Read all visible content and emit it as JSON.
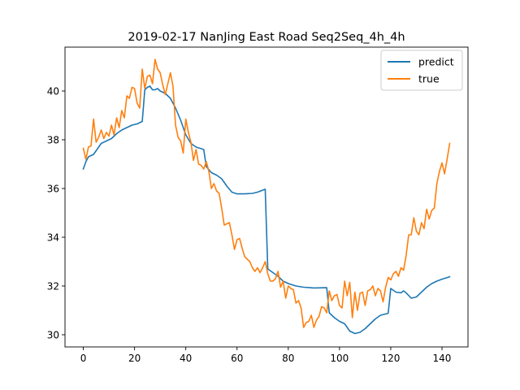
{
  "chart_data": {
    "type": "line",
    "title": "2019-02-17 NanJing East Road Seq2Seq_4h_4h",
    "xlabel": "",
    "ylabel": "",
    "xlim": [
      -7.15,
      150.15
    ],
    "ylim": [
      29.5,
      41.8
    ],
    "xticks": [
      0,
      20,
      40,
      60,
      80,
      100,
      120,
      140
    ],
    "yticks": [
      30,
      32,
      34,
      36,
      38,
      40
    ],
    "grid": false,
    "legend_position": "top-right",
    "series": [
      {
        "name": "predict",
        "color": "#1f77b4",
        "points": [
          [
            0,
            36.8
          ],
          [
            1,
            37.1
          ],
          [
            2,
            37.3
          ],
          [
            4,
            37.4
          ],
          [
            5,
            37.55
          ],
          [
            6,
            37.7
          ],
          [
            7,
            37.85
          ],
          [
            9,
            37.95
          ],
          [
            11,
            38.05
          ],
          [
            13,
            38.25
          ],
          [
            15,
            38.4
          ],
          [
            17,
            38.5
          ],
          [
            19,
            38.6
          ],
          [
            21,
            38.65
          ],
          [
            23,
            38.75
          ],
          [
            24,
            40.05
          ],
          [
            25,
            40.15
          ],
          [
            26,
            40.2
          ],
          [
            27,
            40.05
          ],
          [
            28,
            40.05
          ],
          [
            29,
            40.1
          ],
          [
            30,
            40.0
          ],
          [
            32,
            39.9
          ],
          [
            34,
            39.7
          ],
          [
            36,
            39.3
          ],
          [
            38,
            38.8
          ],
          [
            40,
            38.2
          ],
          [
            42,
            37.85
          ],
          [
            44,
            37.7
          ],
          [
            47,
            37.6
          ],
          [
            48,
            36.9
          ],
          [
            50,
            36.65
          ],
          [
            52,
            36.55
          ],
          [
            54,
            36.4
          ],
          [
            56,
            36.1
          ],
          [
            58,
            35.85
          ],
          [
            60,
            35.78
          ],
          [
            63,
            35.78
          ],
          [
            66,
            35.8
          ],
          [
            68,
            35.85
          ],
          [
            71,
            35.97
          ],
          [
            72,
            32.7
          ],
          [
            74,
            32.55
          ],
          [
            76,
            32.4
          ],
          [
            78,
            32.2
          ],
          [
            80,
            32.1
          ],
          [
            83,
            32.0
          ],
          [
            86,
            31.95
          ],
          [
            90,
            31.92
          ],
          [
            95,
            31.93
          ],
          [
            96,
            30.9
          ],
          [
            98,
            30.7
          ],
          [
            100,
            30.55
          ],
          [
            102,
            30.45
          ],
          [
            104,
            30.15
          ],
          [
            106,
            30.05
          ],
          [
            108,
            30.1
          ],
          [
            110,
            30.25
          ],
          [
            112,
            30.45
          ],
          [
            114,
            30.65
          ],
          [
            116,
            30.8
          ],
          [
            119,
            30.88
          ],
          [
            120,
            31.9
          ],
          [
            122,
            31.75
          ],
          [
            124,
            31.72
          ],
          [
            125,
            31.8
          ],
          [
            126,
            31.72
          ],
          [
            128,
            31.5
          ],
          [
            130,
            31.55
          ],
          [
            132,
            31.75
          ],
          [
            134,
            31.95
          ],
          [
            136,
            32.1
          ],
          [
            138,
            32.2
          ],
          [
            140,
            32.28
          ],
          [
            143,
            32.38
          ]
        ]
      },
      {
        "name": "true",
        "color": "#ff7f0e",
        "points": [
          [
            0,
            37.65
          ],
          [
            1,
            37.2
          ],
          [
            2,
            37.7
          ],
          [
            3,
            37.75
          ],
          [
            4,
            38.85
          ],
          [
            5,
            37.9
          ],
          [
            6,
            38.1
          ],
          [
            7,
            38.4
          ],
          [
            8,
            38.05
          ],
          [
            9,
            38.3
          ],
          [
            10,
            38.15
          ],
          [
            11,
            38.6
          ],
          [
            12,
            38.2
          ],
          [
            13,
            38.9
          ],
          [
            14,
            38.5
          ],
          [
            15,
            39.2
          ],
          [
            16,
            38.9
          ],
          [
            17,
            39.8
          ],
          [
            18,
            39.7
          ],
          [
            19,
            40.15
          ],
          [
            20,
            40.1
          ],
          [
            21,
            39.5
          ],
          [
            22,
            39.3
          ],
          [
            23,
            40.9
          ],
          [
            24,
            40.1
          ],
          [
            25,
            40.6
          ],
          [
            26,
            40.65
          ],
          [
            27,
            40.3
          ],
          [
            28,
            41.3
          ],
          [
            29,
            40.9
          ],
          [
            30,
            40.75
          ],
          [
            31,
            40.25
          ],
          [
            32,
            39.85
          ],
          [
            33,
            40.3
          ],
          [
            34,
            40.75
          ],
          [
            35,
            40.2
          ],
          [
            36,
            38.6
          ],
          [
            37,
            38.1
          ],
          [
            38,
            37.95
          ],
          [
            39,
            37.45
          ],
          [
            40,
            38.85
          ],
          [
            41,
            38.3
          ],
          [
            42,
            37.9
          ],
          [
            43,
            37.15
          ],
          [
            44,
            37.6
          ],
          [
            45,
            37.0
          ],
          [
            46,
            36.95
          ],
          [
            47,
            36.8
          ],
          [
            48,
            37.1
          ],
          [
            49,
            36.7
          ],
          [
            50,
            36.0
          ],
          [
            51,
            36.2
          ],
          [
            52,
            35.9
          ],
          [
            53,
            35.8
          ],
          [
            54,
            35.2
          ],
          [
            55,
            34.5
          ],
          [
            56,
            34.55
          ],
          [
            57,
            34.6
          ],
          [
            58,
            34.1
          ],
          [
            59,
            33.5
          ],
          [
            60,
            33.9
          ],
          [
            61,
            33.95
          ],
          [
            62,
            33.55
          ],
          [
            63,
            33.2
          ],
          [
            64,
            33.1
          ],
          [
            65,
            33.0
          ],
          [
            66,
            32.75
          ],
          [
            67,
            32.6
          ],
          [
            68,
            32.75
          ],
          [
            69,
            32.55
          ],
          [
            70,
            32.75
          ],
          [
            71,
            33.0
          ],
          [
            72,
            32.5
          ],
          [
            73,
            32.2
          ],
          [
            74,
            32.2
          ],
          [
            75,
            32.3
          ],
          [
            76,
            32.6
          ],
          [
            77,
            31.95
          ],
          [
            78,
            32.2
          ],
          [
            79,
            31.5
          ],
          [
            80,
            32.0
          ],
          [
            81,
            31.9
          ],
          [
            82,
            31.85
          ],
          [
            83,
            31.3
          ],
          [
            84,
            31.4
          ],
          [
            85,
            31.1
          ],
          [
            86,
            30.3
          ],
          [
            87,
            30.5
          ],
          [
            88,
            30.55
          ],
          [
            89,
            30.8
          ],
          [
            90,
            30.3
          ],
          [
            91,
            30.6
          ],
          [
            92,
            30.75
          ],
          [
            93,
            31.15
          ],
          [
            94,
            31.1
          ],
          [
            95,
            30.9
          ],
          [
            96,
            31.8
          ],
          [
            97,
            31.4
          ],
          [
            98,
            31.6
          ],
          [
            99,
            31.65
          ],
          [
            100,
            31.2
          ],
          [
            101,
            31.1
          ],
          [
            102,
            32.2
          ],
          [
            103,
            31.6
          ],
          [
            104,
            32.15
          ],
          [
            105,
            30.7
          ],
          [
            106,
            31.75
          ],
          [
            107,
            31.0
          ],
          [
            108,
            31.7
          ],
          [
            109,
            31.75
          ],
          [
            110,
            31.2
          ],
          [
            111,
            31.8
          ],
          [
            112,
            31.85
          ],
          [
            113,
            32.0
          ],
          [
            114,
            31.6
          ],
          [
            115,
            31.9
          ],
          [
            116,
            31.8
          ],
          [
            117,
            31.35
          ],
          [
            118,
            31.95
          ],
          [
            119,
            32.35
          ],
          [
            120,
            32.25
          ],
          [
            121,
            32.5
          ],
          [
            122,
            32.6
          ],
          [
            123,
            32.4
          ],
          [
            124,
            32.75
          ],
          [
            125,
            32.65
          ],
          [
            126,
            33.25
          ],
          [
            127,
            34.1
          ],
          [
            128,
            34.1
          ],
          [
            129,
            34.8
          ],
          [
            130,
            34.25
          ],
          [
            131,
            34.1
          ],
          [
            132,
            34.6
          ],
          [
            133,
            34.35
          ],
          [
            134,
            35.15
          ],
          [
            135,
            34.75
          ],
          [
            136,
            35.1
          ],
          [
            137,
            35.2
          ],
          [
            138,
            36.2
          ],
          [
            139,
            36.7
          ],
          [
            140,
            37.05
          ],
          [
            141,
            36.6
          ],
          [
            142,
            37.2
          ],
          [
            143,
            37.85
          ]
        ]
      }
    ]
  }
}
